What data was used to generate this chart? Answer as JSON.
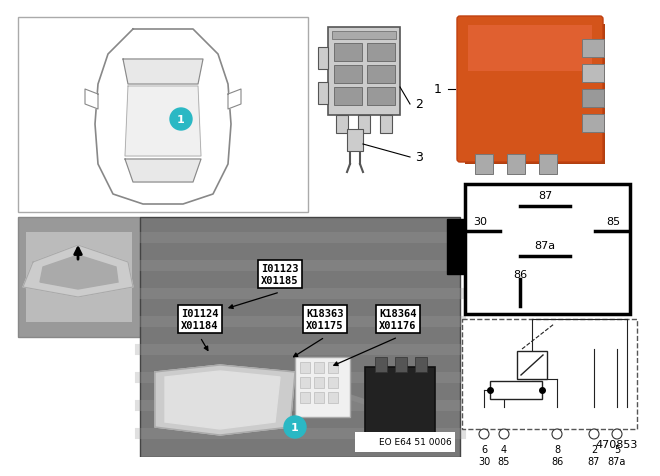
{
  "part_number": "470853",
  "eo_code": "EO E64 51 0006",
  "background_color": "#ffffff",
  "teal_color": "#2ab8c4",
  "relay_orange": "#d4541a",
  "relay_pin_labels": [
    "87",
    "30",
    "87a",
    "85",
    "86"
  ],
  "pin_top_labels": [
    "6",
    "4",
    "8",
    "2",
    "5"
  ],
  "pin_bot_labels": [
    "30",
    "85",
    "86",
    "87",
    "87a"
  ]
}
